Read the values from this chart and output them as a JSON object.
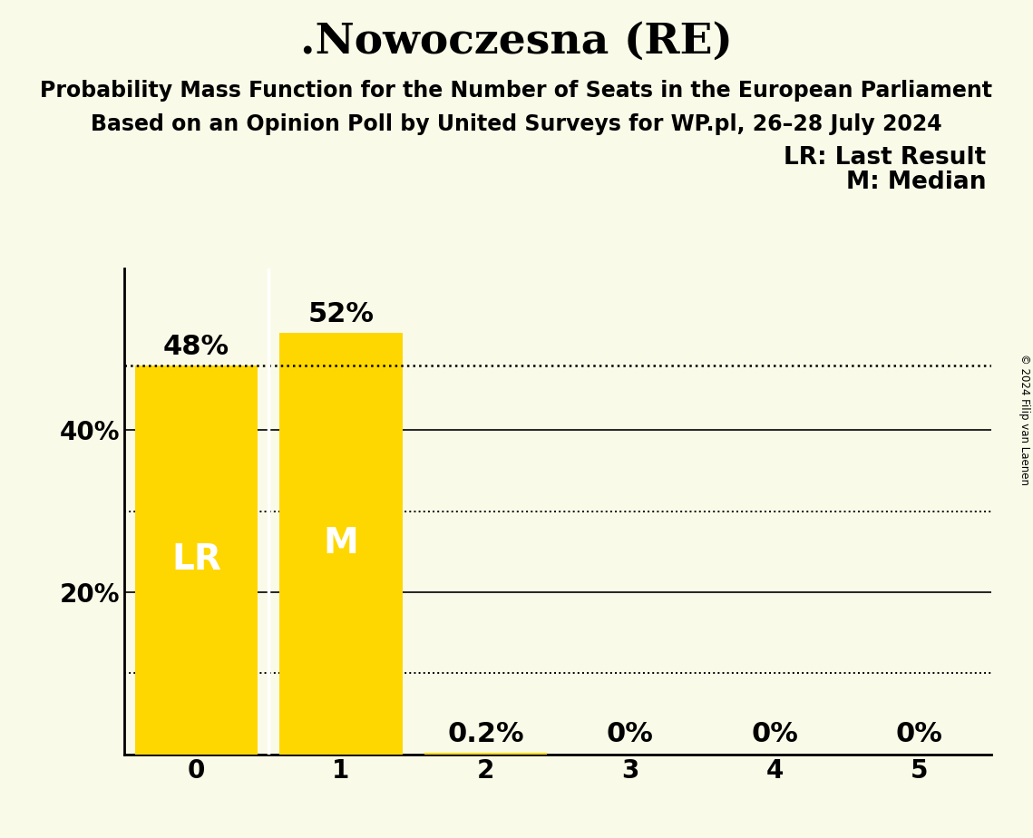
{
  "title": ".Nowoczesna (RE)",
  "subtitle1": "Probability Mass Function for the Number of Seats in the European Parliament",
  "subtitle2": "Based on an Opinion Poll by United Surveys for WP.pl, 26–28 July 2024",
  "copyright": "© 2024 Filip van Laenen",
  "categories": [
    0,
    1,
    2,
    3,
    4,
    5
  ],
  "values": [
    0.48,
    0.52,
    0.002,
    0.0,
    0.0,
    0.0
  ],
  "bar_labels": [
    "48%",
    "52%",
    "0.2%",
    "0%",
    "0%",
    "0%"
  ],
  "bar_color": "#FFD700",
  "background_color": "#FAFAE8",
  "lr_seat": 0,
  "median_seat": 1,
  "lr_label": "LR",
  "median_label": "M",
  "legend_lr": "LR: Last Result",
  "legend_m": "M: Median",
  "yticks": [
    0.1,
    0.2,
    0.3,
    0.4
  ],
  "ytick_labels": [
    "",
    "20%",
    "",
    "40%"
  ],
  "ylim": [
    0,
    0.6
  ],
  "xlim": [
    -0.5,
    5.5
  ],
  "dotted_line_value": 0.48,
  "title_fontsize": 34,
  "subtitle_fontsize": 17,
  "bar_label_fontsize": 22,
  "axis_tick_fontsize": 20,
  "inner_label_fontsize": 28,
  "legend_fontsize": 19
}
